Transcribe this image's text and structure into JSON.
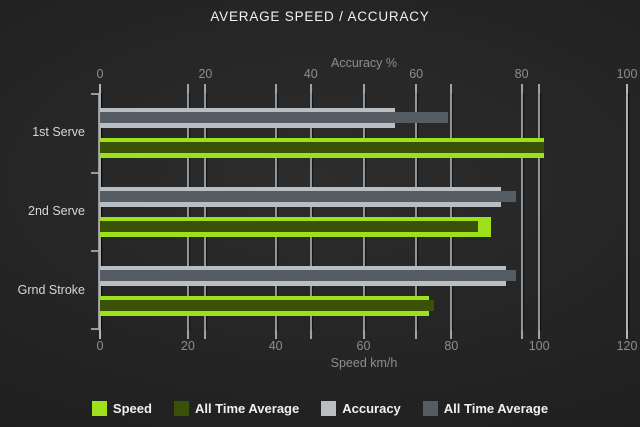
{
  "chart_data": {
    "type": "bar",
    "orientation": "horizontal",
    "title": "AVERAGE SPEED / ACCURACY",
    "categories": [
      "1st Serve",
      "2nd Serve",
      "Grnd Stroke"
    ],
    "axes": {
      "top": {
        "label": "Accuracy %",
        "ticks": [
          0,
          20,
          40,
          60,
          80,
          100
        ],
        "min": 0,
        "max": 100
      },
      "bottom": {
        "label": "Speed km/h",
        "ticks": [
          0,
          20,
          40,
          60,
          80,
          100,
          120
        ],
        "min": 0,
        "max": 120
      }
    },
    "series": [
      {
        "name": "Speed",
        "axis": "bottom",
        "role": "outer",
        "color": "#9ee01c",
        "values": [
          101,
          89,
          75
        ]
      },
      {
        "name": "All Time Average",
        "axis": "bottom",
        "role": "inner",
        "color": "#3a5208",
        "values": [
          101,
          86,
          76
        ]
      },
      {
        "name": "Accuracy",
        "axis": "top",
        "role": "outer",
        "color": "#b9bec3",
        "values": [
          56,
          76,
          77
        ]
      },
      {
        "name": "All Time Average",
        "axis": "top",
        "role": "inner",
        "color": "#565c63",
        "values": [
          66,
          79,
          79
        ]
      }
    ],
    "legend": [
      {
        "label": "Speed",
        "color": "#9ee01c"
      },
      {
        "label": "All Time Average",
        "color": "#3a5208"
      },
      {
        "label": "Accuracy",
        "color": "#b9bec3"
      },
      {
        "label": "All Time Average",
        "color": "#565c63"
      }
    ],
    "grid": true,
    "legend_position": "bottom"
  },
  "colors": {
    "background_center": "#2d2d2d",
    "background_edge": "#191919",
    "gridline": "#b6b9bc",
    "axis_text": "#8d8d8d",
    "category_text": "#d6d6d6",
    "title_text": "#f1f1f1",
    "legend_text": "#efefef"
  }
}
